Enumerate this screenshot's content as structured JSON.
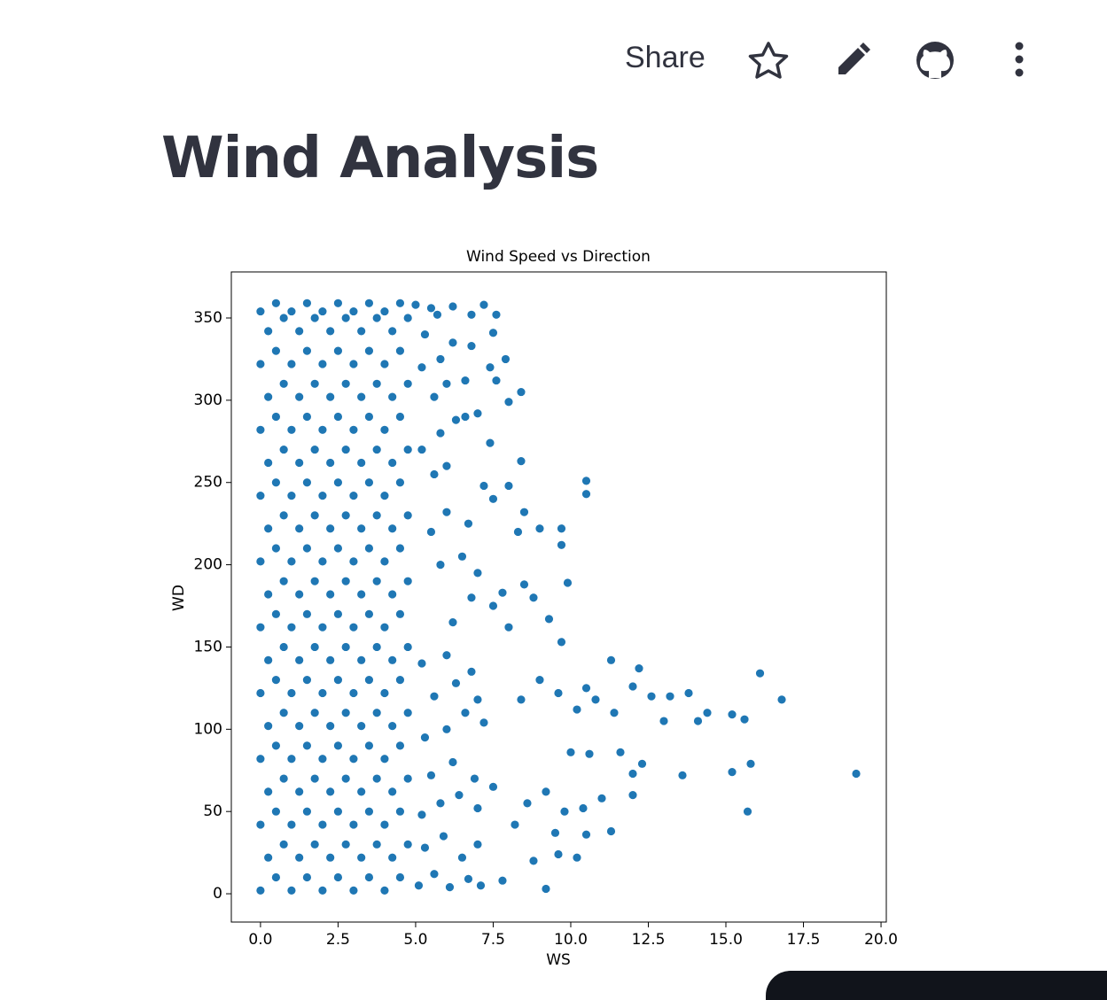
{
  "header": {
    "share": "Share"
  },
  "title": "Wind Analysis",
  "chart_data": {
    "type": "scatter",
    "title": "Wind Speed vs Direction",
    "x_label": "WS",
    "y_label": "WD",
    "color": "#1f77b4",
    "xlim": [
      -0.94,
      20.17
    ],
    "ylim": [
      -17.2,
      378
    ],
    "xticks": [
      {
        "value": 0,
        "label": "0.0"
      },
      2.5,
      {
        "value": 5,
        "label": "5.0"
      },
      7.5,
      {
        "value": 10,
        "label": "10.0"
      },
      12.5,
      {
        "value": 15,
        "label": "15.0"
      },
      17.5,
      {
        "value": 20,
        "label": "20.0"
      }
    ],
    "yticks": [
      0,
      50,
      100,
      150,
      200,
      250,
      300,
      350
    ],
    "x": [
      0,
      0.5,
      1,
      1.5,
      2,
      2.5,
      3,
      3.5,
      4,
      4.5,
      0.25,
      0.75,
      1.25,
      1.75,
      2.25,
      2.75,
      3.25,
      3.75,
      4.25,
      4.75,
      0,
      0.5,
      1,
      1.5,
      2,
      2.5,
      3,
      3.5,
      4,
      4.5,
      0.25,
      0.75,
      1.25,
      1.75,
      2.25,
      2.75,
      3.25,
      3.75,
      4.25,
      4.75,
      0,
      0.5,
      1,
      1.5,
      2,
      2.5,
      3,
      3.5,
      4,
      4.5,
      0.25,
      0.75,
      1.25,
      1.75,
      2.25,
      2.75,
      3.25,
      3.75,
      4.25,
      4.75,
      0,
      0.5,
      1,
      1.5,
      2,
      2.5,
      3,
      3.5,
      4,
      4.5,
      0.25,
      0.75,
      1.25,
      1.75,
      2.25,
      2.75,
      3.25,
      3.75,
      4.25,
      4.75,
      0,
      0.5,
      1,
      1.5,
      2,
      2.5,
      3,
      3.5,
      4,
      4.5,
      0.25,
      0.75,
      1.25,
      1.75,
      2.25,
      2.75,
      3.25,
      3.75,
      4.25,
      4.75,
      0,
      0.5,
      1,
      1.5,
      2,
      2.5,
      3,
      3.5,
      4,
      4.5,
      0.25,
      0.75,
      1.25,
      1.75,
      2.25,
      2.75,
      3.25,
      3.75,
      4.25,
      4.75,
      0,
      0.5,
      1,
      1.5,
      2,
      2.5,
      3,
      3.5,
      4,
      4.5,
      0.25,
      0.75,
      1.25,
      1.75,
      2.25,
      2.75,
      3.25,
      3.75,
      4.25,
      4.75,
      0,
      0.5,
      1,
      1.5,
      2,
      2.5,
      3,
      3.5,
      4,
      4.5,
      0.25,
      0.75,
      1.25,
      1.75,
      2.25,
      2.75,
      3.25,
      3.75,
      4.25,
      4.75,
      0,
      0.5,
      1,
      1.5,
      2,
      2.5,
      3,
      3.5,
      4,
      4.5,
      0.25,
      0.75,
      1.25,
      1.75,
      2.25,
      2.75,
      3.25,
      3.75,
      4.25,
      4.75,
      0,
      0.5,
      1,
      1.5,
      2,
      2.5,
      3,
      3.5,
      4,
      4.5,
      5.1,
      5.6,
      6.1,
      6.7,
      7.1,
      5.3,
      5.9,
      6.5,
      7.0,
      5.2,
      5.8,
      6.4,
      7.0,
      5.5,
      6.2,
      6.9,
      7.5,
      5.3,
      6.0,
      6.6,
      7.2,
      5.6,
      6.3,
      7.0,
      5.2,
      6.0,
      6.8,
      7.8,
      8.2,
      8.8,
      9.2,
      9.6,
      10.2,
      9.5,
      10.5,
      11.3,
      8.6,
      9.2,
      9.8,
      10.4,
      11.0,
      10.0,
      10.6,
      11.6,
      12.0,
      12.3,
      12.0,
      8.4,
      9.0,
      9.6,
      10.2,
      10.8,
      11.4,
      12.0,
      12.6,
      13.2,
      13.8,
      14.1,
      14.4,
      13.6,
      15.2,
      15.8,
      15.2,
      15.6,
      16.1,
      16.8,
      15.7,
      19.2,
      13.0,
      12.2,
      11.3,
      10.5,
      9.7,
      9.3,
      9.9,
      8.8,
      8.5,
      7.8,
      7.5,
      8.0,
      6.2,
      6.8,
      9.0,
      9.7,
      9.7,
      8.0,
      8.5,
      8.3,
      7.5,
      10.5,
      10.5,
      7.2,
      6.7,
      6.0,
      5.5,
      5.8,
      6.5,
      7.0,
      6.0,
      5.2,
      5.6,
      8.4,
      7.4,
      6.3,
      5.8,
      7.0,
      6.6,
      8.0,
      8.4,
      5.6,
      6.0,
      7.6,
      6.6,
      7.4,
      7.9,
      5.2,
      5.8,
      6.2,
      6.8,
      5.3,
      7.5,
      5.7,
      6.2,
      6.8,
      7.2,
      7.6,
      5.0,
      5.5
    ],
    "y": [
      2,
      10,
      2,
      10,
      2,
      10,
      2,
      10,
      2,
      10,
      22,
      30,
      22,
      30,
      22,
      30,
      22,
      30,
      22,
      30,
      42,
      50,
      42,
      50,
      42,
      50,
      42,
      50,
      42,
      50,
      62,
      70,
      62,
      70,
      62,
      70,
      62,
      70,
      62,
      70,
      82,
      90,
      82,
      90,
      82,
      90,
      82,
      90,
      82,
      90,
      102,
      110,
      102,
      110,
      102,
      110,
      102,
      110,
      102,
      110,
      122,
      130,
      122,
      130,
      122,
      130,
      122,
      130,
      122,
      130,
      142,
      150,
      142,
      150,
      142,
      150,
      142,
      150,
      142,
      150,
      162,
      170,
      162,
      170,
      162,
      170,
      162,
      170,
      162,
      170,
      182,
      190,
      182,
      190,
      182,
      190,
      182,
      190,
      182,
      190,
      202,
      210,
      202,
      210,
      202,
      210,
      202,
      210,
      202,
      210,
      222,
      230,
      222,
      230,
      222,
      230,
      222,
      230,
      222,
      230,
      242,
      250,
      242,
      250,
      242,
      250,
      242,
      250,
      242,
      250,
      262,
      270,
      262,
      270,
      262,
      270,
      262,
      270,
      262,
      270,
      282,
      290,
      282,
      290,
      282,
      290,
      282,
      290,
      282,
      290,
      302,
      310,
      302,
      310,
      302,
      310,
      302,
      310,
      302,
      310,
      322,
      330,
      322,
      330,
      322,
      330,
      322,
      330,
      322,
      330,
      342,
      350,
      342,
      350,
      342,
      350,
      342,
      350,
      342,
      350,
      354,
      359,
      354,
      359,
      354,
      359,
      354,
      359,
      354,
      359,
      5,
      12,
      4,
      9,
      5,
      28,
      35,
      22,
      30,
      48,
      55,
      60,
      52,
      72,
      80,
      70,
      65,
      95,
      100,
      110,
      104,
      120,
      128,
      118,
      140,
      145,
      135,
      8,
      42,
      20,
      3,
      24,
      22,
      37,
      36,
      38,
      55,
      62,
      50,
      52,
      58,
      86,
      85,
      86,
      60,
      79,
      73,
      118,
      130,
      122,
      112,
      118,
      110,
      126,
      120,
      120,
      122,
      105,
      110,
      72,
      74,
      79,
      109,
      106,
      134,
      118,
      50,
      73,
      105,
      137,
      142,
      125,
      153,
      167,
      189,
      180,
      188,
      183,
      175,
      162,
      165,
      180,
      222,
      222,
      212,
      248,
      232,
      220,
      240,
      251,
      243,
      248,
      225,
      232,
      220,
      200,
      205,
      195,
      260,
      270,
      255,
      263,
      274,
      288,
      280,
      292,
      290,
      299,
      305,
      302,
      310,
      312,
      312,
      320,
      325,
      320,
      325,
      335,
      333,
      340,
      341,
      352,
      357,
      352,
      358,
      352,
      358,
      356
    ]
  }
}
